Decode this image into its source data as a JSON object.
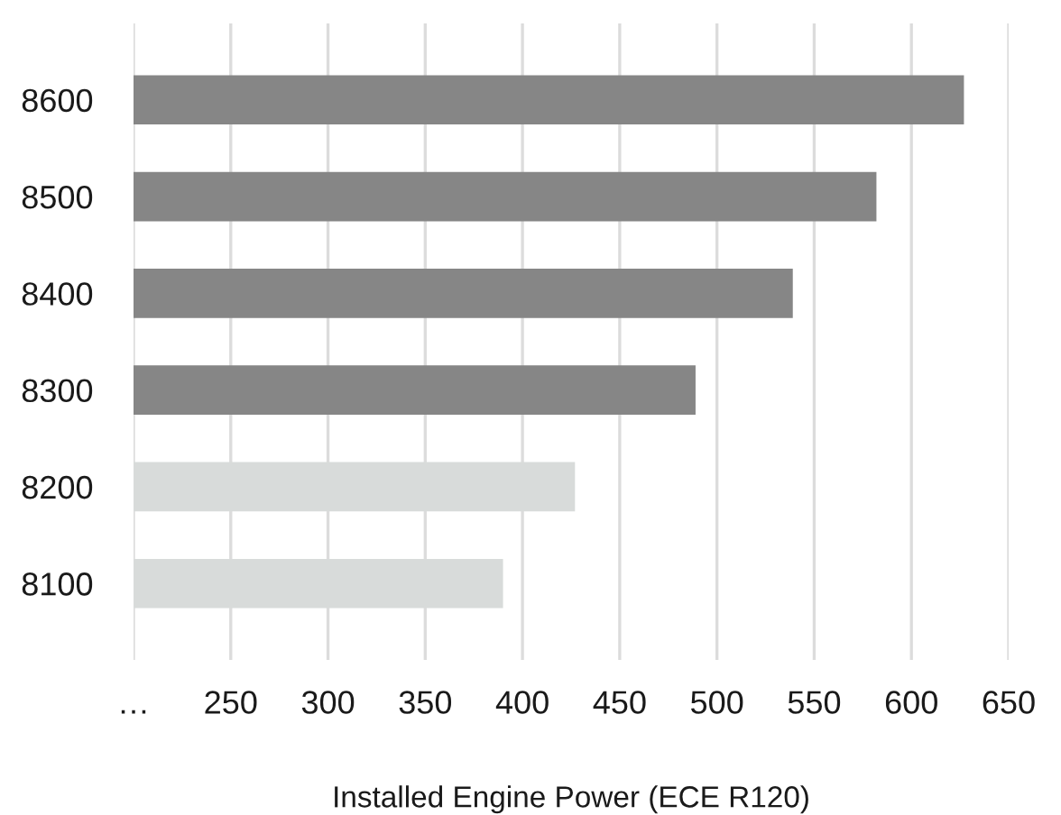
{
  "chart_data": {
    "type": "bar",
    "orientation": "horizontal",
    "xlabel": "Installed Engine Power (ECE R120)",
    "categories": [
      "8600",
      "8500",
      "8400",
      "8300",
      "8200",
      "8100"
    ],
    "values": [
      627,
      582,
      539,
      489,
      427,
      390
    ],
    "colors": [
      "#868686",
      "#868686",
      "#868686",
      "#868686",
      "#d8dbda",
      "#d8dbda"
    ],
    "xlim": [
      200,
      650
    ],
    "xticks": [
      {
        "value": 200,
        "label": "…"
      },
      250,
      300,
      350,
      400,
      450,
      500,
      550,
      600,
      650
    ],
    "grid": "x",
    "legend": false
  }
}
